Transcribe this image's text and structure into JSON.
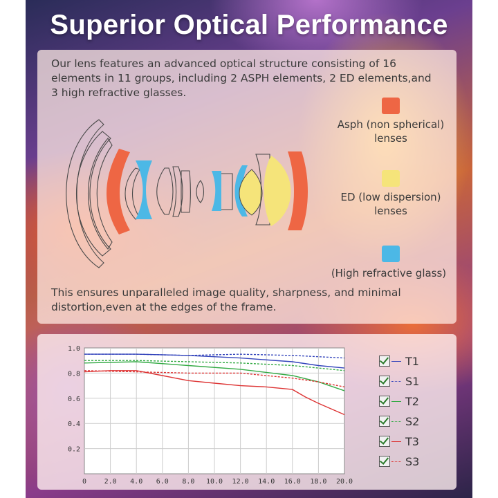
{
  "title": "Superior Optical Performance",
  "intro": "Our lens features an advanced optical structure consisting of 16 elements in 11 groups, including 2 ASPH elements, 2 ED elements,and 3 high refractive glasses.",
  "summary": "This ensures unparalleled image quality, sharpness, and minimal distortion,even at the edges of the frame.",
  "legend": [
    {
      "line1": "Asph (non spherical)",
      "line2": "lenses",
      "color": "#ee6644"
    },
    {
      "line1": "ED (low dispersion)",
      "line2": "lenses",
      "color": "#f5e47a"
    },
    {
      "line1": "(High refractive glass)",
      "line2": "",
      "color": "#4cb8e6"
    }
  ],
  "chart_data": {
    "type": "line",
    "x_ticks": [
      "0",
      "2.0",
      "4.0",
      "6.0",
      "8.0",
      "10.0",
      "12.0",
      "14.0",
      "16.0",
      "18.0",
      "20.0"
    ],
    "y_ticks": [
      "0.2",
      "0.4",
      "0.6",
      "0.8",
      "1.0"
    ],
    "xlim": [
      0,
      20
    ],
    "ylim": [
      0,
      1.0
    ],
    "grid": true,
    "legend_position": "right",
    "series": [
      {
        "name": "T1",
        "color": "#3344bb",
        "dash": false,
        "x": [
          0,
          4,
          8,
          12,
          16,
          18,
          20
        ],
        "y": [
          0.95,
          0.95,
          0.94,
          0.92,
          0.89,
          0.86,
          0.84
        ]
      },
      {
        "name": "S1",
        "color": "#3344bb",
        "dash": true,
        "x": [
          0,
          4,
          8,
          12,
          16,
          18,
          20
        ],
        "y": [
          0.95,
          0.95,
          0.94,
          0.95,
          0.94,
          0.93,
          0.92
        ]
      },
      {
        "name": "T2",
        "color": "#33aa44",
        "dash": false,
        "x": [
          0,
          4,
          8,
          12,
          16,
          18,
          20
        ],
        "y": [
          0.88,
          0.89,
          0.86,
          0.83,
          0.78,
          0.73,
          0.66
        ]
      },
      {
        "name": "S2",
        "color": "#33aa44",
        "dash": true,
        "x": [
          0,
          4,
          8,
          12,
          16,
          18,
          20
        ],
        "y": [
          0.9,
          0.9,
          0.89,
          0.88,
          0.86,
          0.84,
          0.82
        ]
      },
      {
        "name": "T3",
        "color": "#dd3333",
        "dash": false,
        "x": [
          0,
          2,
          4,
          6,
          8,
          10,
          12,
          14,
          16,
          17,
          18,
          20
        ],
        "y": [
          0.81,
          0.82,
          0.82,
          0.78,
          0.74,
          0.72,
          0.7,
          0.69,
          0.67,
          0.61,
          0.56,
          0.47
        ]
      },
      {
        "name": "S3",
        "color": "#dd3333",
        "dash": true,
        "x": [
          0,
          4,
          8,
          12,
          16,
          18,
          20
        ],
        "y": [
          0.82,
          0.81,
          0.8,
          0.8,
          0.76,
          0.73,
          0.69
        ]
      }
    ]
  }
}
